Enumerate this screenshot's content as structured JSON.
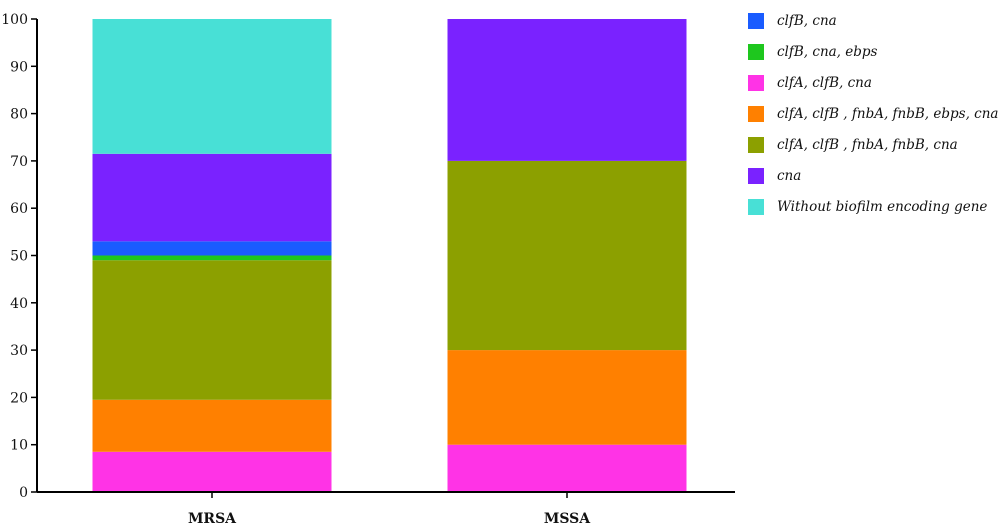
{
  "chart_data": {
    "type": "bar",
    "stacked": true,
    "categories": [
      "MRSA",
      "MSSA"
    ],
    "ylim": [
      0,
      100
    ],
    "yticks": [
      0,
      10,
      20,
      30,
      40,
      50,
      60,
      70,
      80,
      90,
      100
    ],
    "grid": false,
    "legend_position": "right",
    "series": [
      {
        "name": "clfA, clfB, cna",
        "color": "#ff33e6",
        "values": [
          8.5,
          10
        ]
      },
      {
        "name": "clfA, clfB , fnbA, fnbB, ebps, cna",
        "color": "#ff8000",
        "values": [
          11,
          20
        ]
      },
      {
        "name": "clfA, clfB , fnbA, fnbB, cna",
        "color": "#8ca000",
        "values": [
          29.5,
          40
        ]
      },
      {
        "name": "clfB, cna, ebps",
        "color": "#1ec71e",
        "values": [
          1,
          0
        ]
      },
      {
        "name": "clfB, cna",
        "color": "#1a5cff",
        "values": [
          3,
          0
        ]
      },
      {
        "name": "cna",
        "color": "#7a22ff",
        "values": [
          18.5,
          30
        ]
      },
      {
        "name": "Without biofilm encoding gene",
        "color": "#48e0d6",
        "values": [
          28.5,
          0
        ]
      }
    ],
    "legend_order": [
      4,
      3,
      0,
      1,
      2,
      5,
      6
    ]
  }
}
